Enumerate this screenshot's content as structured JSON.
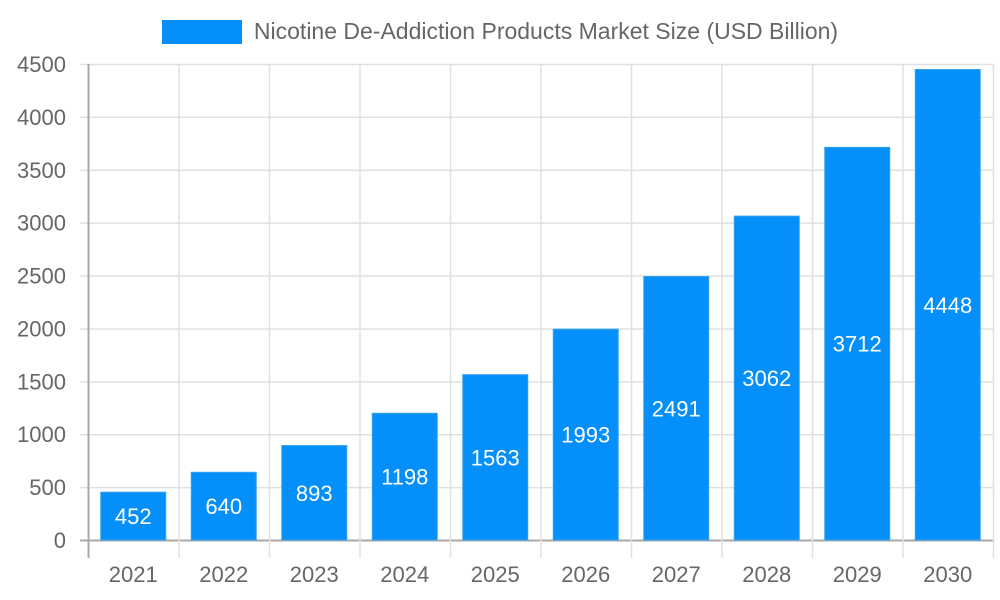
{
  "legend": {
    "label": "Nicotine De-Addiction Products Market Size (USD Billion)",
    "color": "#048ffa"
  },
  "colors": {
    "bar": "#048ffa",
    "bar_border": "#36a2eb",
    "grid": "#e0e0e0",
    "axis": "#a8a8a8",
    "tick_text": "#666666",
    "value_text": "#ffffff"
  },
  "chart_data": {
    "type": "bar",
    "title": "",
    "categories": [
      "2021",
      "2022",
      "2023",
      "2024",
      "2025",
      "2026",
      "2027",
      "2028",
      "2029",
      "2030"
    ],
    "series": [
      {
        "name": "Nicotine De-Addiction Products Market Size (USD Billion)",
        "values": [
          452,
          640,
          893,
          1198,
          1563,
          1993,
          2491,
          3062,
          3712,
          4448
        ]
      }
    ],
    "xlabel": "",
    "ylabel": "",
    "ylim": [
      0,
      4500
    ],
    "yticks": [
      0,
      500,
      1000,
      1500,
      2000,
      2500,
      3000,
      3500,
      4000,
      4500
    ],
    "grid": true,
    "legend_position": "top",
    "data_labels": true
  }
}
